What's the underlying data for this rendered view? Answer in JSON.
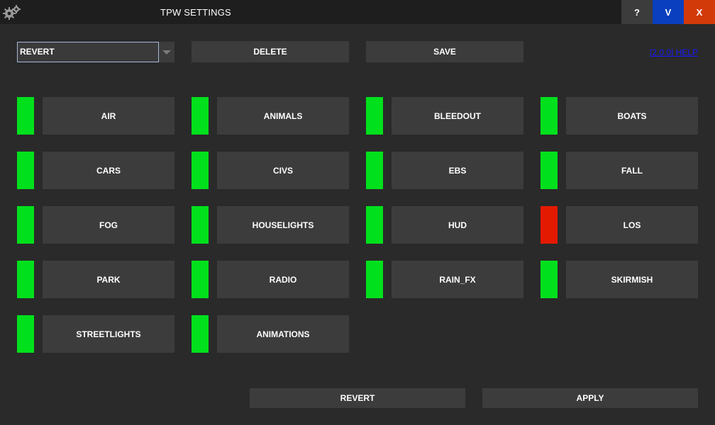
{
  "window": {
    "title": "TPW SETTINGS",
    "buttons": {
      "help": "?",
      "v": "V",
      "close": "X"
    },
    "colors": {
      "help": "#3c3c3c",
      "v": "#0a3fbf",
      "close": "#d33a0a"
    },
    "icon": "gears-icon"
  },
  "toolbar": {
    "preset_value": "REVERT",
    "delete_label": "DELETE",
    "save_label": "SAVE",
    "help_link": "[2.0.0] HELP"
  },
  "status_colors": {
    "on": "#00e01c",
    "off": "#e41a00"
  },
  "modules": [
    {
      "label": "AIR",
      "enabled": true
    },
    {
      "label": "ANIMALS",
      "enabled": true
    },
    {
      "label": "BLEEDOUT",
      "enabled": true
    },
    {
      "label": "BOATS",
      "enabled": true
    },
    {
      "label": "CARS",
      "enabled": true
    },
    {
      "label": "CIVS",
      "enabled": true
    },
    {
      "label": "EBS",
      "enabled": true
    },
    {
      "label": "FALL",
      "enabled": true
    },
    {
      "label": "FOG",
      "enabled": true
    },
    {
      "label": "HOUSELIGHTS",
      "enabled": true
    },
    {
      "label": "HUD",
      "enabled": true
    },
    {
      "label": "LOS",
      "enabled": false
    },
    {
      "label": "PARK",
      "enabled": true
    },
    {
      "label": "RADIO",
      "enabled": true
    },
    {
      "label": "RAIN_FX",
      "enabled": true
    },
    {
      "label": "SKIRMISH",
      "enabled": true
    },
    {
      "label": "STREETLIGHTS",
      "enabled": true
    },
    {
      "label": "ANIMATIONS",
      "enabled": true
    }
  ],
  "footer": {
    "revert_label": "REVERT",
    "apply_label": "APPLY"
  }
}
